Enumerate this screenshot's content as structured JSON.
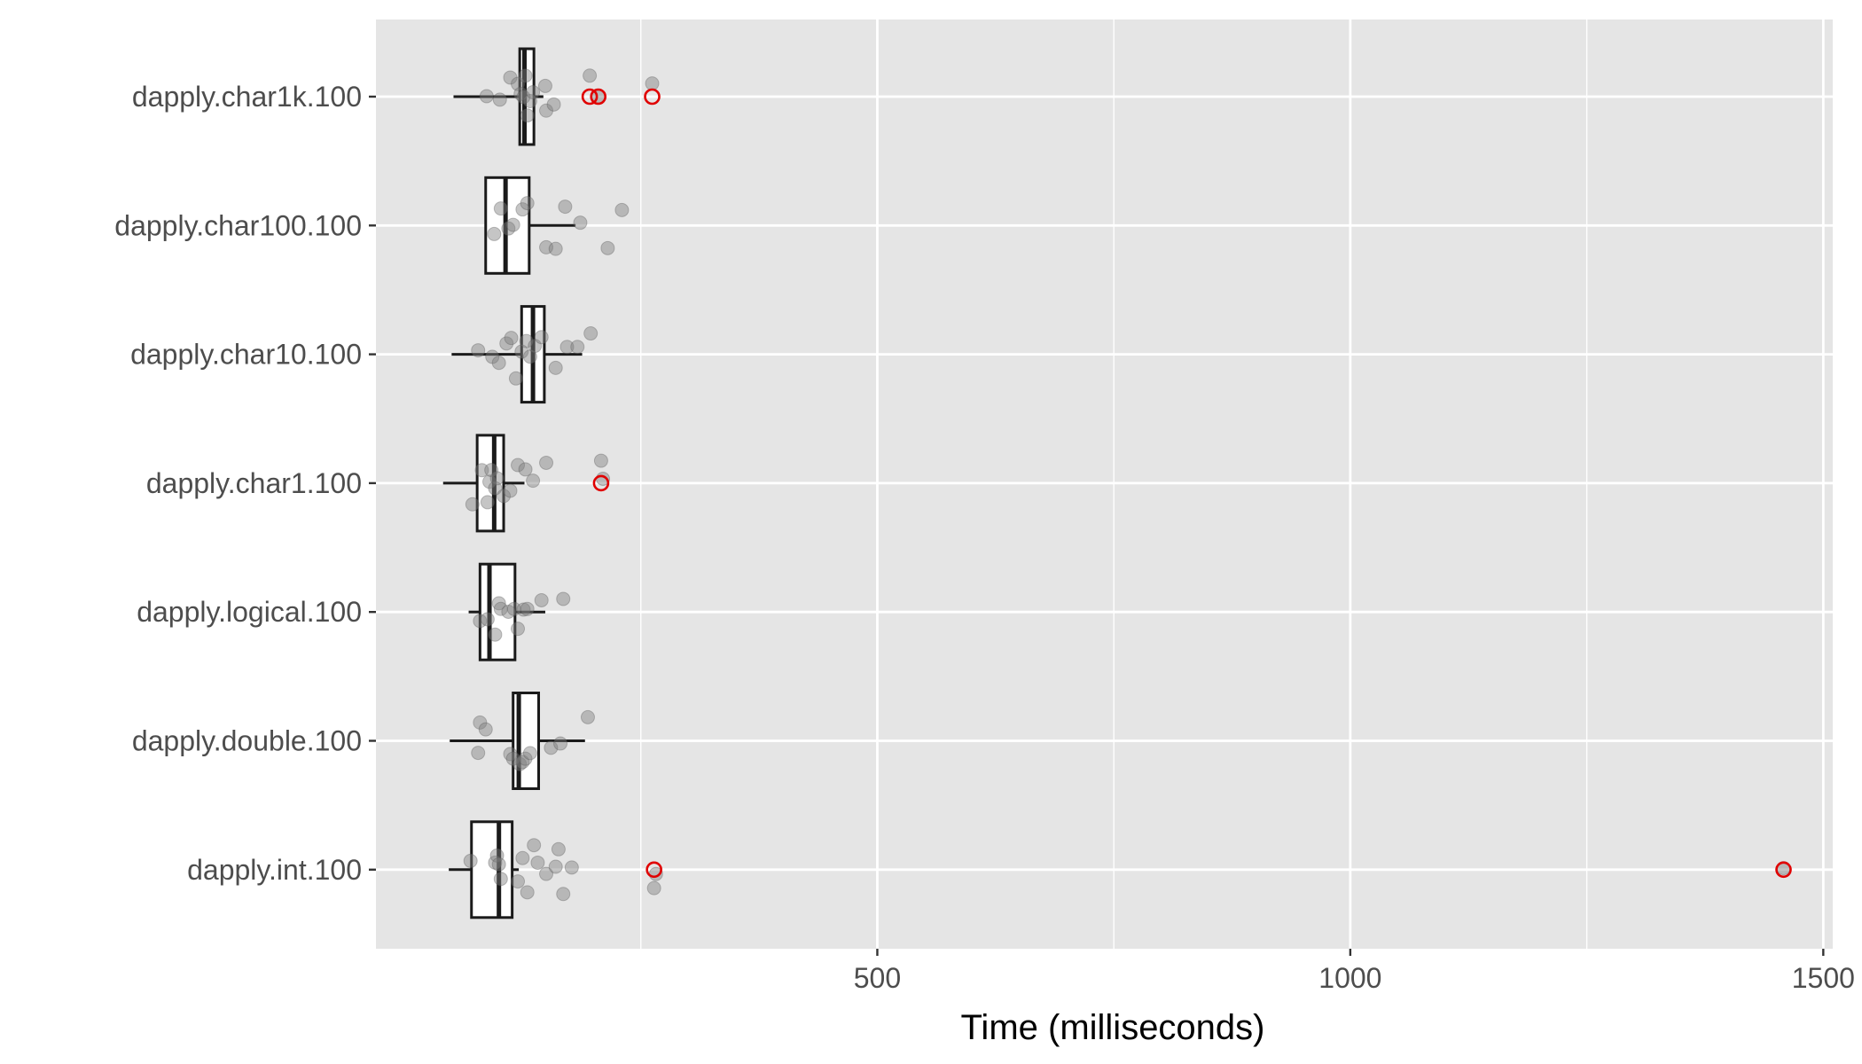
{
  "chart_data": {
    "type": "boxplot",
    "orientation": "horizontal",
    "xlabel": "Time (milliseconds)",
    "ylabel": "",
    "xlim": [
      -30,
      1510
    ],
    "x_ticks": [
      500,
      1000,
      1500
    ],
    "x_tick_labels": [
      "500",
      "1000",
      "1500"
    ],
    "grid": true,
    "colors": {
      "panel_bg": "#e5e5e5",
      "grid": "#ffffff",
      "box_stroke": "#1a1a1a",
      "point_fill": "#7f7f7f",
      "outlier": "#e00000",
      "tick_text": "#4d4d4d"
    },
    "categories": [
      "dapply.char1k.100",
      "dapply.char100.100",
      "dapply.char10.100",
      "dapply.char1.100",
      "dapply.logical.100",
      "dapply.double.100",
      "dapply.int.100"
    ],
    "boxes": [
      {
        "name": "dapply.char1k.100",
        "whisker_low": 52,
        "q1": 122,
        "median": 127,
        "q3": 137,
        "whisker_high": 147,
        "outliers": [
          196,
          205,
          262
        ]
      },
      {
        "name": "dapply.char100.100",
        "whisker_low": 86,
        "q1": 86,
        "median": 107,
        "q3": 132,
        "whisker_high": 181,
        "outliers": []
      },
      {
        "name": "dapply.char10.100",
        "whisker_low": 50,
        "q1": 124,
        "median": 136,
        "q3": 148,
        "whisker_high": 188,
        "outliers": []
      },
      {
        "name": "dapply.char1.100",
        "whisker_low": 41,
        "q1": 77,
        "median": 95,
        "q3": 105,
        "whisker_high": 127,
        "outliers": [
          208
        ]
      },
      {
        "name": "dapply.logical.100",
        "whisker_low": 68,
        "q1": 80,
        "median": 90,
        "q3": 117,
        "whisker_high": 149,
        "outliers": []
      },
      {
        "name": "dapply.double.100",
        "whisker_low": 48,
        "q1": 115,
        "median": 121,
        "q3": 142,
        "whisker_high": 191,
        "outliers": []
      },
      {
        "name": "dapply.int.100",
        "whisker_low": 47,
        "q1": 71,
        "median": 100,
        "q3": 114,
        "whisker_high": 121,
        "outliers": [
          264,
          1458
        ]
      }
    ],
    "points": [
      {
        "name": "dapply.char1k.100",
        "values": [
          87,
          101,
          112,
          120,
          123,
          126,
          128,
          130,
          133,
          136,
          149,
          150,
          158,
          196,
          205,
          262
        ]
      },
      {
        "name": "dapply.char100.100",
        "values": [
          95,
          102,
          110,
          115,
          125,
          130,
          150,
          160,
          170,
          186,
          215,
          230
        ]
      },
      {
        "name": "dapply.char10.100",
        "values": [
          78,
          93,
          100,
          108,
          113,
          118,
          124,
          129,
          133,
          138,
          145,
          160,
          172,
          183,
          197
        ]
      },
      {
        "name": "dapply.char1.100",
        "values": [
          72,
          82,
          88,
          90,
          92,
          96,
          98,
          105,
          112,
          120,
          128,
          136,
          150,
          208,
          210
        ]
      },
      {
        "name": "dapply.logical.100",
        "values": [
          80,
          88,
          96,
          100,
          102,
          110,
          116,
          120,
          126,
          130,
          145,
          168
        ]
      },
      {
        "name": "dapply.double.100",
        "values": [
          78,
          80,
          86,
          112,
          115,
          122,
          125,
          128,
          133,
          155,
          165,
          194
        ]
      },
      {
        "name": "dapply.int.100",
        "values": [
          70,
          96,
          98,
          100,
          102,
          120,
          125,
          130,
          137,
          141,
          150,
          160,
          163,
          168,
          177,
          264,
          266,
          1458
        ]
      }
    ]
  }
}
